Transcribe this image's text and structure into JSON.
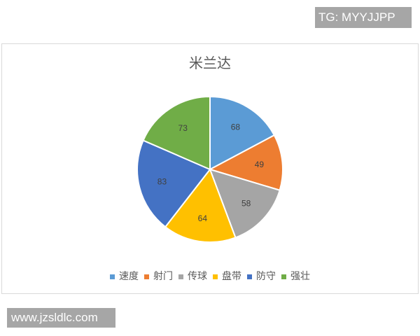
{
  "watermark_top": "TG: MYYJJPP",
  "watermark_bottom": "www.jzsldlc.com",
  "chart_data": {
    "type": "pie",
    "title": "米兰达",
    "categories": [
      "速度",
      "射门",
      "传球",
      "盘带",
      "防守",
      "强壮"
    ],
    "values": [
      68,
      49,
      58,
      64,
      83,
      73
    ],
    "colors": [
      "#5b9bd5",
      "#ed7d31",
      "#a5a5a5",
      "#ffc000",
      "#4472c4",
      "#70ad47"
    ],
    "data_labels": [
      "68",
      "49",
      "58",
      "64",
      "83",
      "73"
    ],
    "start_angle": "top, clockwise",
    "legend_position": "bottom"
  }
}
